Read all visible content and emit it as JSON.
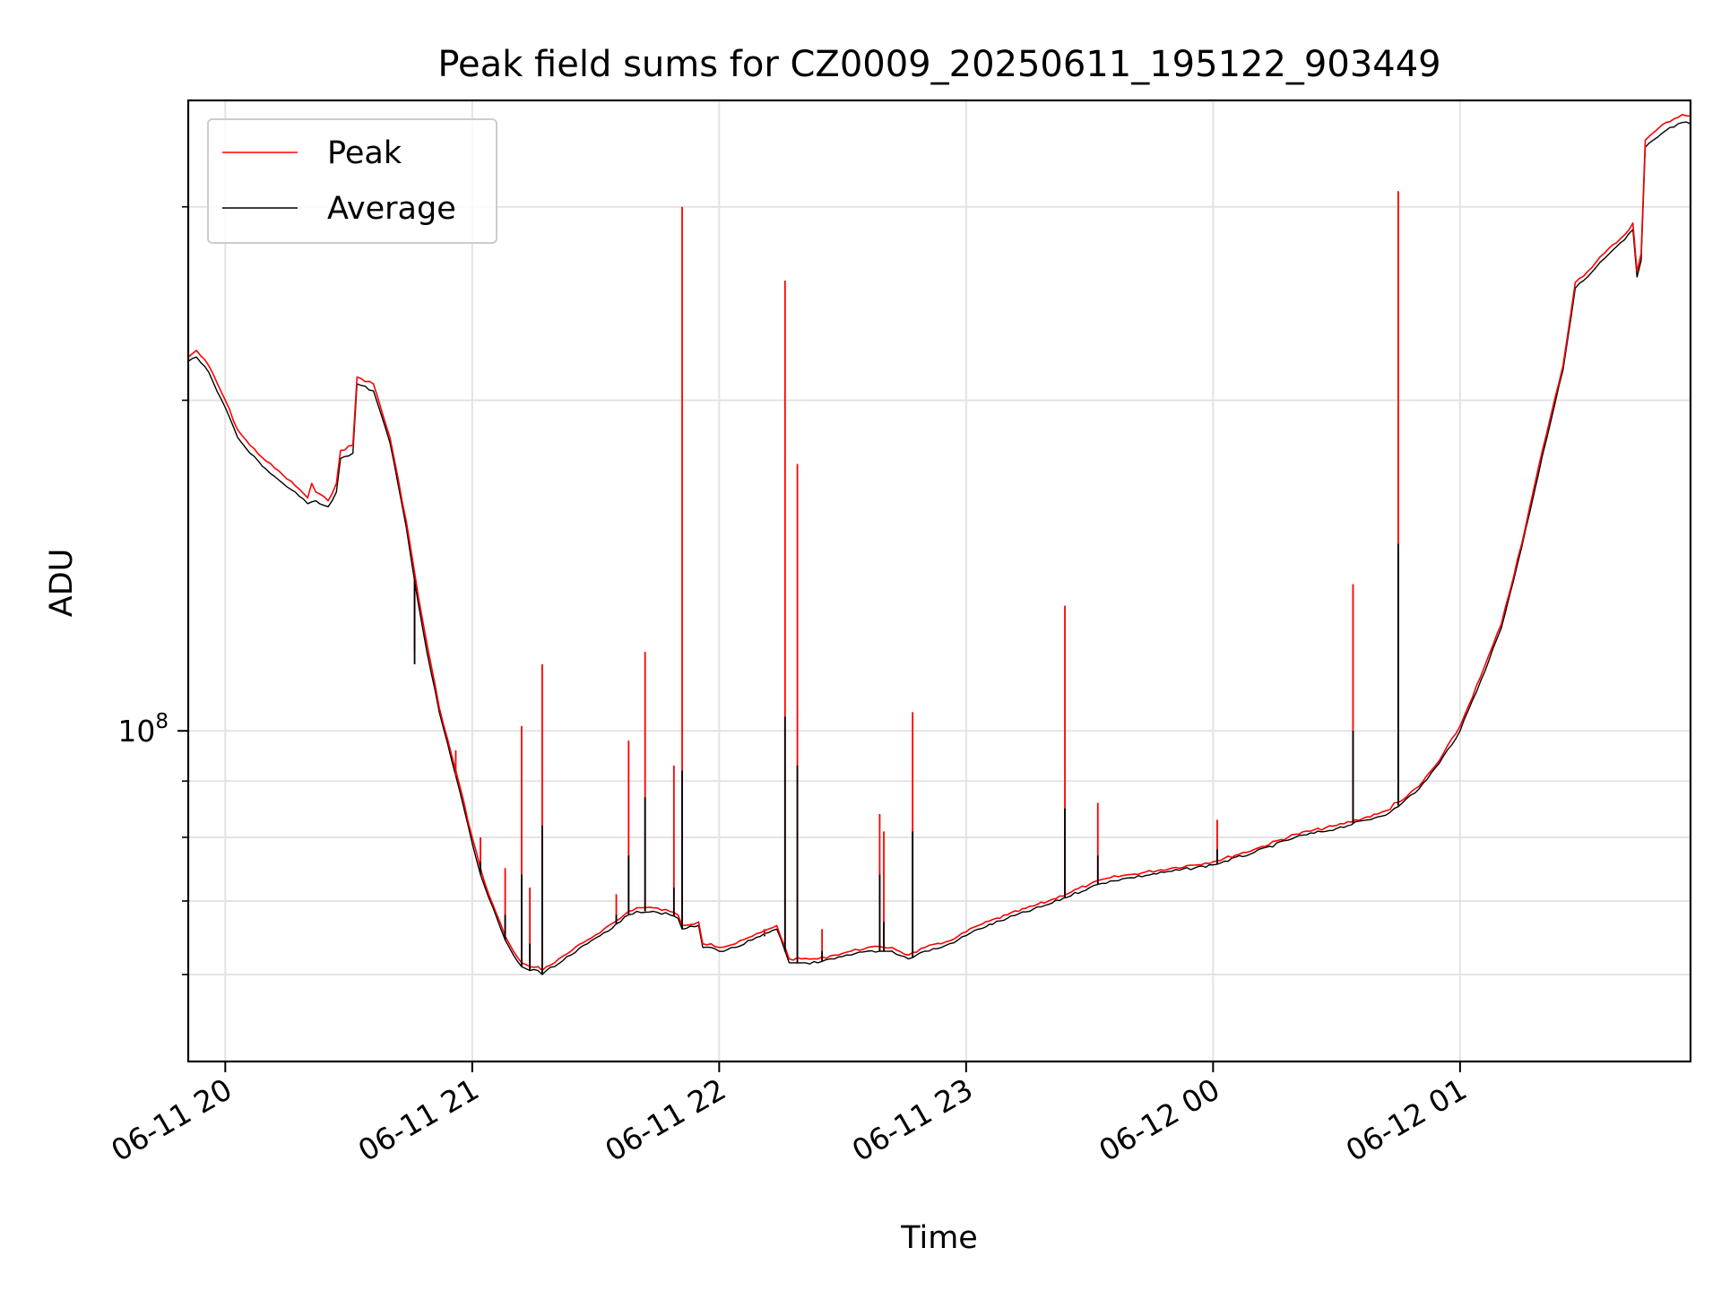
{
  "chart_data": {
    "type": "line",
    "title": "Peak field sums for CZ0009_20250611_195122_903449",
    "xlabel": "Time",
    "ylabel": "ADU",
    "y_scale": "log",
    "grid": true,
    "legend_position": "top-left",
    "xlim": [
      "2025-06-11 19:51",
      "2025-06-12 01:56"
    ],
    "ylim": [
      50000000,
      375000000
    ],
    "x_ticks": [
      "06-11 20",
      "06-11 21",
      "06-11 22",
      "06-11 23",
      "06-12 00",
      "06-12 01"
    ],
    "x_tick_times": [
      "2025-06-11 20:00",
      "2025-06-11 21:00",
      "2025-06-11 22:00",
      "2025-06-11 23:00",
      "2025-06-12 00:00",
      "2025-06-12 01:00"
    ],
    "y_major_ticks": [
      {
        "value": 100000000,
        "base": "10",
        "exp": "8"
      }
    ],
    "y_minor_ticks": [
      60000000,
      70000000,
      80000000,
      90000000,
      200000000,
      300000000
    ],
    "series": [
      {
        "name": "Peak",
        "color": "#ff0000",
        "points": [
          [
            "2025-06-11 19:51",
            219000000
          ],
          [
            "2025-06-11 19:53",
            222000000
          ],
          [
            "2025-06-11 19:56",
            215000000
          ],
          [
            "2025-06-11 20:00",
            200000000
          ],
          [
            "2025-06-11 20:03",
            188000000
          ],
          [
            "2025-06-11 20:06",
            182000000
          ],
          [
            "2025-06-11 20:10",
            176000000
          ],
          [
            "2025-06-11 20:14",
            171000000
          ],
          [
            "2025-06-11 20:18",
            166000000
          ],
          [
            "2025-06-11 20:20",
            163000000
          ],
          [
            "2025-06-11 20:21",
            168000000
          ],
          [
            "2025-06-11 20:22",
            165000000
          ],
          [
            "2025-06-11 20:25",
            162000000
          ],
          [
            "2025-06-11 20:27",
            168000000
          ],
          [
            "2025-06-11 20:28",
            180000000
          ],
          [
            "2025-06-11 20:31",
            182000000
          ],
          [
            "2025-06-11 20:32",
            210000000
          ],
          [
            "2025-06-11 20:36",
            207000000
          ],
          [
            "2025-06-11 20:40",
            185000000
          ],
          [
            "2025-06-11 20:44",
            155000000
          ],
          [
            "2025-06-11 20:47",
            132000000
          ],
          [
            "2025-06-11 20:49",
            120000000
          ],
          [
            "2025-06-11 20:52",
            105000000
          ],
          [
            "2025-06-11 20:55",
            95000000
          ],
          [
            "2025-06-11 20:57",
            89000000
          ],
          [
            "2025-06-11 21:00",
            80000000
          ],
          [
            "2025-06-11 21:02",
            75000000
          ],
          [
            "2025-06-11 21:04",
            71000000
          ],
          [
            "2025-06-11 21:06",
            68000000
          ],
          [
            "2025-06-11 21:08",
            65000000
          ],
          [
            "2025-06-11 21:09",
            64000000
          ],
          [
            "2025-06-11 21:10",
            63000000
          ],
          [
            "2025-06-11 21:12",
            61500000
          ],
          [
            "2025-06-11 21:14",
            61000000
          ],
          [
            "2025-06-11 21:16",
            61000000
          ],
          [
            "2025-06-11 21:17",
            60500000
          ],
          [
            "2025-06-11 21:18",
            61000000
          ],
          [
            "2025-06-11 21:20",
            61500000
          ],
          [
            "2025-06-11 21:24",
            63000000
          ],
          [
            "2025-06-11 21:28",
            64500000
          ],
          [
            "2025-06-11 21:32",
            66000000
          ],
          [
            "2025-06-11 21:36",
            67500000
          ],
          [
            "2025-06-11 21:38",
            68500000
          ],
          [
            "2025-06-11 21:40",
            69000000
          ],
          [
            "2025-06-11 21:44",
            69000000
          ],
          [
            "2025-06-11 21:48",
            68500000
          ],
          [
            "2025-06-11 21:50",
            68000000
          ],
          [
            "2025-06-11 21:51",
            66500000
          ],
          [
            "2025-06-11 21:55",
            67000000
          ],
          [
            "2025-06-11 21:56",
            64000000
          ],
          [
            "2025-06-11 21:58",
            64000000
          ],
          [
            "2025-06-11 22:00",
            63500000
          ],
          [
            "2025-06-11 22:04",
            64000000
          ],
          [
            "2025-06-11 22:08",
            65000000
          ],
          [
            "2025-06-11 22:10",
            65500000
          ],
          [
            "2025-06-11 22:12",
            66000000
          ],
          [
            "2025-06-11 22:14",
            66500000
          ],
          [
            "2025-06-11 22:17",
            62000000
          ],
          [
            "2025-06-11 22:20",
            62000000
          ],
          [
            "2025-06-11 22:24",
            62000000
          ],
          [
            "2025-06-11 22:28",
            62500000
          ],
          [
            "2025-06-11 22:32",
            63000000
          ],
          [
            "2025-06-11 22:36",
            63500000
          ],
          [
            "2025-06-11 22:40",
            63500000
          ],
          [
            "2025-06-11 22:42",
            63500000
          ],
          [
            "2025-06-11 22:46",
            62500000
          ],
          [
            "2025-06-11 22:50",
            63500000
          ],
          [
            "2025-06-11 22:54",
            64000000
          ],
          [
            "2025-06-11 22:58",
            65000000
          ],
          [
            "2025-06-11 23:03",
            66500000
          ],
          [
            "2025-06-11 23:10",
            68000000
          ],
          [
            "2025-06-11 23:20",
            70000000
          ],
          [
            "2025-06-11 23:30",
            72500000
          ],
          [
            "2025-06-11 23:35",
            73500000
          ],
          [
            "2025-06-11 23:40",
            74000000
          ],
          [
            "2025-06-11 23:50",
            75000000
          ],
          [
            "2025-06-12 00:00",
            76000000
          ],
          [
            "2025-06-12 00:10",
            78000000
          ],
          [
            "2025-06-12 00:20",
            80500000
          ],
          [
            "2025-06-12 00:30",
            82000000
          ],
          [
            "2025-06-12 00:40",
            84000000
          ],
          [
            "2025-06-12 00:43",
            84800000
          ],
          [
            "2025-06-12 00:44",
            86000000
          ],
          [
            "2025-06-12 00:46",
            86500000
          ],
          [
            "2025-06-12 00:50",
            89000000
          ],
          [
            "2025-06-12 00:55",
            94000000
          ],
          [
            "2025-06-12 01:00",
            101000000
          ],
          [
            "2025-06-12 01:05",
            112000000
          ],
          [
            "2025-06-12 01:10",
            125000000
          ],
          [
            "2025-06-12 01:15",
            148000000
          ],
          [
            "2025-06-12 01:20",
            180000000
          ],
          [
            "2025-06-12 01:25",
            215000000
          ],
          [
            "2025-06-12 01:28",
            256000000
          ],
          [
            "2025-06-12 01:31",
            262000000
          ],
          [
            "2025-06-12 01:35",
            272000000
          ],
          [
            "2025-06-12 01:40",
            283000000
          ],
          [
            "2025-06-12 01:42",
            290000000
          ],
          [
            "2025-06-12 01:43",
            262000000
          ],
          [
            "2025-06-12 01:44",
            272000000
          ],
          [
            "2025-06-12 01:45",
            345000000
          ],
          [
            "2025-06-12 01:50",
            358000000
          ],
          [
            "2025-06-12 01:54",
            364000000
          ],
          [
            "2025-06-12 01:56",
            363000000
          ]
        ]
      },
      {
        "name": "Average",
        "color": "#000000",
        "points": [
          [
            "2025-06-11 19:51",
            217000000
          ],
          [
            "2025-06-11 19:53",
            219000000
          ],
          [
            "2025-06-11 19:56",
            212000000
          ],
          [
            "2025-06-11 20:00",
            197000000
          ],
          [
            "2025-06-11 20:03",
            185000000
          ],
          [
            "2025-06-11 20:06",
            179000000
          ],
          [
            "2025-06-11 20:10",
            173000000
          ],
          [
            "2025-06-11 20:14",
            168000000
          ],
          [
            "2025-06-11 20:18",
            163500000
          ],
          [
            "2025-06-11 20:20",
            161000000
          ],
          [
            "2025-06-11 20:22",
            162000000
          ],
          [
            "2025-06-11 20:25",
            160000000
          ],
          [
            "2025-06-11 20:27",
            165000000
          ],
          [
            "2025-06-11 20:28",
            177000000
          ],
          [
            "2025-06-11 20:31",
            179000000
          ],
          [
            "2025-06-11 20:32",
            207000000
          ],
          [
            "2025-06-11 20:36",
            204000000
          ],
          [
            "2025-06-11 20:40",
            183000000
          ],
          [
            "2025-06-11 20:44",
            153000000
          ],
          [
            "2025-06-11 20:47",
            130000000
          ],
          [
            "2025-06-11 20:49",
            118000000
          ],
          [
            "2025-06-11 20:52",
            104000000
          ],
          [
            "2025-06-11 20:55",
            94000000
          ],
          [
            "2025-06-11 20:57",
            88000000
          ],
          [
            "2025-06-11 21:00",
            79000000
          ],
          [
            "2025-06-11 21:02",
            74000000
          ],
          [
            "2025-06-11 21:04",
            70500000
          ],
          [
            "2025-06-11 21:06",
            67500000
          ],
          [
            "2025-06-11 21:08",
            64500000
          ],
          [
            "2025-06-11 21:09",
            63500000
          ],
          [
            "2025-06-11 21:10",
            62500000
          ],
          [
            "2025-06-11 21:12",
            61000000
          ],
          [
            "2025-06-11 21:14",
            60500000
          ],
          [
            "2025-06-11 21:16",
            60500000
          ],
          [
            "2025-06-11 21:17",
            60000000
          ],
          [
            "2025-06-11 21:18",
            60500000
          ],
          [
            "2025-06-11 21:20",
            61000000
          ],
          [
            "2025-06-11 21:24",
            62500000
          ],
          [
            "2025-06-11 21:28",
            64000000
          ],
          [
            "2025-06-11 21:32",
            65500000
          ],
          [
            "2025-06-11 21:36",
            67000000
          ],
          [
            "2025-06-11 21:38",
            68000000
          ],
          [
            "2025-06-11 21:40",
            68500000
          ],
          [
            "2025-06-11 21:44",
            68500000
          ],
          [
            "2025-06-11 21:48",
            68000000
          ],
          [
            "2025-06-11 21:50",
            67500000
          ],
          [
            "2025-06-11 21:51",
            66000000
          ],
          [
            "2025-06-11 21:55",
            66500000
          ],
          [
            "2025-06-11 21:56",
            63500000
          ],
          [
            "2025-06-11 21:58",
            63500000
          ],
          [
            "2025-06-11 22:00",
            63000000
          ],
          [
            "2025-06-11 22:04",
            63500000
          ],
          [
            "2025-06-11 22:08",
            64500000
          ],
          [
            "2025-06-11 22:10",
            65000000
          ],
          [
            "2025-06-11 22:12",
            65500000
          ],
          [
            "2025-06-11 22:14",
            66000000
          ],
          [
            "2025-06-11 22:17",
            61500000
          ],
          [
            "2025-06-11 22:20",
            61500000
          ],
          [
            "2025-06-11 22:24",
            61500000
          ],
          [
            "2025-06-11 22:28",
            62000000
          ],
          [
            "2025-06-11 22:32",
            62500000
          ],
          [
            "2025-06-11 22:36",
            63000000
          ],
          [
            "2025-06-11 22:40",
            63000000
          ],
          [
            "2025-06-11 22:42",
            63000000
          ],
          [
            "2025-06-11 22:46",
            62000000
          ],
          [
            "2025-06-11 22:50",
            63000000
          ],
          [
            "2025-06-11 22:54",
            63500000
          ],
          [
            "2025-06-11 22:58",
            64500000
          ],
          [
            "2025-06-11 23:03",
            66000000
          ],
          [
            "2025-06-11 23:10",
            67500000
          ],
          [
            "2025-06-11 23:20",
            69500000
          ],
          [
            "2025-06-11 23:30",
            72000000
          ],
          [
            "2025-06-11 23:35",
            73000000
          ],
          [
            "2025-06-11 23:40",
            73500000
          ],
          [
            "2025-06-11 23:50",
            74500000
          ],
          [
            "2025-06-12 00:00",
            75500000
          ],
          [
            "2025-06-12 00:10",
            77500000
          ],
          [
            "2025-06-12 00:20",
            80000000
          ],
          [
            "2025-06-12 00:30",
            81500000
          ],
          [
            "2025-06-12 00:40",
            83500000
          ],
          [
            "2025-06-12 00:43",
            84300000
          ],
          [
            "2025-06-12 00:44",
            85000000
          ],
          [
            "2025-06-12 00:46",
            86000000
          ],
          [
            "2025-06-12 00:50",
            88500000
          ],
          [
            "2025-06-12 00:55",
            93500000
          ],
          [
            "2025-06-12 01:00",
            100000000
          ],
          [
            "2025-06-12 01:05",
            111000000
          ],
          [
            "2025-06-12 01:10",
            124000000
          ],
          [
            "2025-06-12 01:15",
            147000000
          ],
          [
            "2025-06-12 01:20",
            178000000
          ],
          [
            "2025-06-12 01:25",
            213000000
          ],
          [
            "2025-06-12 01:28",
            253000000
          ],
          [
            "2025-06-12 01:31",
            259000000
          ],
          [
            "2025-06-12 01:35",
            269000000
          ],
          [
            "2025-06-12 01:40",
            280000000
          ],
          [
            "2025-06-12 01:42",
            286000000
          ],
          [
            "2025-06-12 01:43",
            259000000
          ],
          [
            "2025-06-12 01:44",
            268000000
          ],
          [
            "2025-06-12 01:45",
            340000000
          ],
          [
            "2025-06-12 01:50",
            352000000
          ],
          [
            "2025-06-12 01:54",
            358000000
          ],
          [
            "2025-06-12 01:56",
            357000000
          ]
        ]
      }
    ],
    "spikes": [
      {
        "time": "2025-06-11 20:46",
        "peak": 118000000,
        "average": 115000000
      },
      {
        "time": "2025-06-11 20:56",
        "peak": 96000000,
        "average": 91000000
      },
      {
        "time": "2025-06-11 21:02",
        "peak": 80000000,
        "average": 76000000
      },
      {
        "time": "2025-06-11 21:08",
        "peak": 75000000,
        "average": 68000000
      },
      {
        "time": "2025-06-11 21:12",
        "peak": 101000000,
        "average": 74000000
      },
      {
        "time": "2025-06-11 21:14",
        "peak": 72000000,
        "average": 64000000
      },
      {
        "time": "2025-06-11 21:17",
        "peak": 115000000,
        "average": 82000000
      },
      {
        "time": "2025-06-11 21:35",
        "peak": 71000000,
        "average": 68000000
      },
      {
        "time": "2025-06-11 21:38",
        "peak": 98000000,
        "average": 77000000
      },
      {
        "time": "2025-06-11 21:42",
        "peak": 118000000,
        "average": 87000000
      },
      {
        "time": "2025-06-11 21:49",
        "peak": 93000000,
        "average": 72000000
      },
      {
        "time": "2025-06-11 21:51",
        "peak": 300000000,
        "average": 92000000
      },
      {
        "time": "2025-06-11 22:11",
        "peak": 66000000,
        "average": 65000000
      },
      {
        "time": "2025-06-11 22:16",
        "peak": 257000000,
        "average": 103000000
      },
      {
        "time": "2025-06-11 22:19",
        "peak": 175000000,
        "average": 93000000
      },
      {
        "time": "2025-06-11 22:25",
        "peak": 66000000,
        "average": 63000000
      },
      {
        "time": "2025-06-11 22:39",
        "peak": 84000000,
        "average": 74000000
      },
      {
        "time": "2025-06-11 22:40",
        "peak": 81000000,
        "average": 67000000
      },
      {
        "time": "2025-06-11 22:47",
        "peak": 104000000,
        "average": 81000000
      },
      {
        "time": "2025-06-11 23:24",
        "peak": 130000000,
        "average": 85000000
      },
      {
        "time": "2025-06-11 23:32",
        "peak": 86000000,
        "average": 77000000
      },
      {
        "time": "2025-06-12 00:01",
        "peak": 83000000,
        "average": 78000000
      },
      {
        "time": "2025-06-12 00:34",
        "peak": 136000000,
        "average": 100000000
      },
      {
        "time": "2025-06-12 00:45",
        "peak": 310000000,
        "average": 148000000
      }
    ]
  }
}
